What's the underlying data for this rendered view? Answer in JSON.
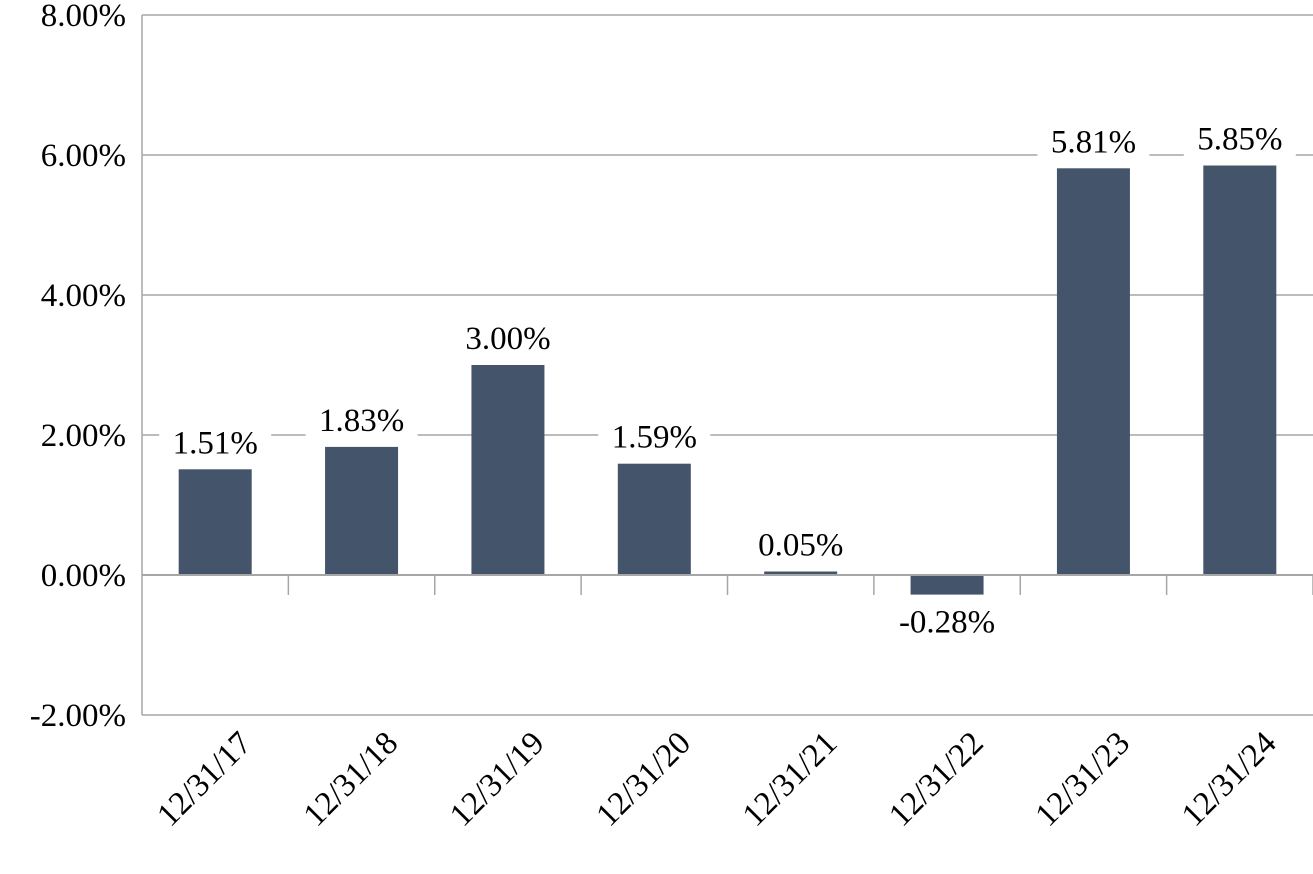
{
  "chart_data": {
    "type": "bar",
    "categories": [
      "12/31/17",
      "12/31/18",
      "12/31/19",
      "12/31/20",
      "12/31/21",
      "12/31/22",
      "12/31/23",
      "12/31/24"
    ],
    "values": [
      1.51,
      1.83,
      3.0,
      1.59,
      0.05,
      -0.28,
      5.81,
      5.85
    ],
    "data_labels": [
      "1.51%",
      "1.83%",
      "3.00%",
      "1.59%",
      "0.05%",
      "-0.28%",
      "5.81%",
      "5.85%"
    ],
    "y_ticks": [
      -2,
      0,
      2,
      4,
      6,
      8
    ],
    "y_tick_labels": [
      "-2.00%",
      "0.00%",
      "2.00%",
      "4.00%",
      "6.00%",
      "8.00%"
    ],
    "ylim": [
      -2,
      8
    ],
    "title": "",
    "xlabel": "",
    "ylabel": "",
    "grid": true,
    "legend": "none",
    "colors": {
      "bar": "#44546A",
      "grid": "#A6A6A6",
      "axis": "#A6A6A6"
    }
  }
}
